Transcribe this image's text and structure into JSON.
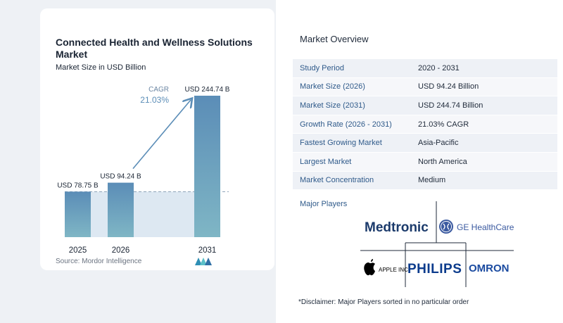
{
  "chart_data": {
    "type": "bar",
    "title": "Connected Health and Wellness Solutions Market",
    "subtitle": "Market Size in USD Billion",
    "categories": [
      "2025",
      "2026",
      "2031"
    ],
    "values": [
      78.75,
      94.24,
      244.74
    ],
    "value_labels": [
      "USD 78.75 B",
      "USD 94.24 B",
      "USD 244.74 B"
    ],
    "cagr_label": "CAGR",
    "cagr_value": "21.03%",
    "ylim": [
      0,
      244.74
    ],
    "grid": false,
    "colors": {
      "bar_top": "#5b8db7",
      "bar_bottom": "#7fb6c5",
      "arrow": "#5b8db7",
      "baseline_band": "#dde8f2"
    }
  },
  "source": "Source:  Mordor Intelligence",
  "overview": {
    "heading": "Market Overview",
    "rows": [
      {
        "label": "Study Period",
        "value": "2020 - 2031"
      },
      {
        "label": "Market Size (2026)",
        "value": "USD 94.24 Billion"
      },
      {
        "label": "Market Size (2031)",
        "value": "USD 244.74 Billion"
      },
      {
        "label": "Growth Rate (2026 - 2031)",
        "value": "21.03% CAGR"
      },
      {
        "label": "Fastest Growing Market",
        "value": "Asia-Pacific"
      },
      {
        "label": "Largest Market",
        "value": "North America"
      },
      {
        "label": "Market Concentration",
        "value": "Medium"
      }
    ]
  },
  "players": {
    "heading": "Major Players",
    "names": [
      "Medtronic",
      "GE HealthCare",
      "APPLE INC.",
      "PHILIPS",
      "OMRON"
    ],
    "colors": {
      "medtronic": "#1b3a6b",
      "ge": "#3b5aa0",
      "philips": "#0b3b8c",
      "omron": "#1a4aa0",
      "apple": "#000000"
    }
  },
  "disclaimer": "*Disclaimer: Major Players sorted in no particular order"
}
